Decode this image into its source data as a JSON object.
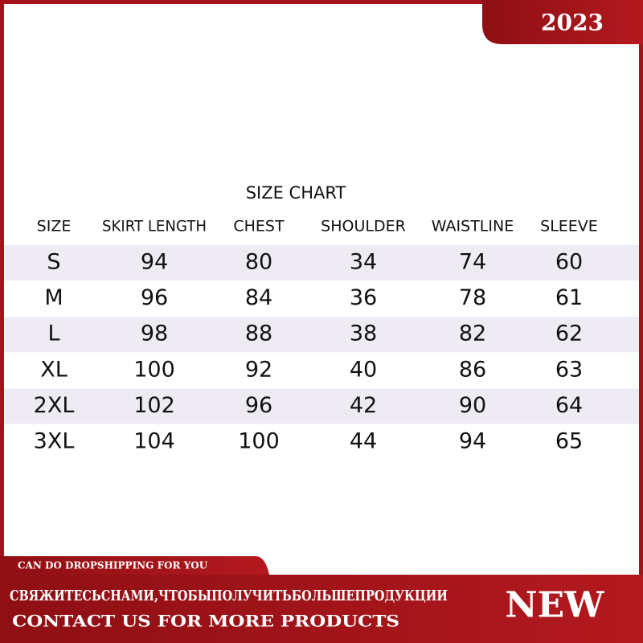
{
  "badge": "2023",
  "table": {
    "title": "SIZE CHART",
    "headers": [
      "SIZE",
      "SKIRT LENGTH",
      "CHEST",
      "SHOULDER",
      "WAISTLINE",
      "SLEEVE"
    ],
    "rows": [
      [
        "S",
        "94",
        "80",
        "34",
        "74",
        "60"
      ],
      [
        "M",
        "96",
        "84",
        "36",
        "78",
        "61"
      ],
      [
        "L",
        "98",
        "88",
        "38",
        "82",
        "62"
      ],
      [
        "XL",
        "100",
        "92",
        "40",
        "86",
        "63"
      ],
      [
        "2XL",
        "102",
        "96",
        "42",
        "90",
        "64"
      ],
      [
        "3XL",
        "104",
        "100",
        "44",
        "94",
        "65"
      ]
    ]
  },
  "footer": {
    "tab": "CAN DO DROPSHIPPING FOR YOU",
    "russian": "СВЯЖИТЕСЬСНАМИ,ЧТОБЫПОЛУЧИТЬБОЛЬШЕПРОДУКЦИИ",
    "contact": "CONTACT US FOR MORE PRODUCTS",
    "new": "NEW"
  }
}
